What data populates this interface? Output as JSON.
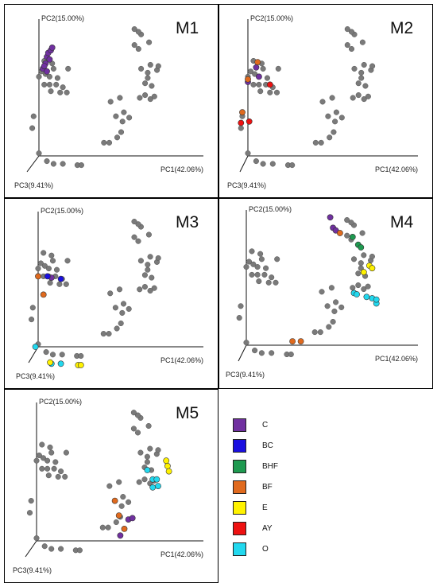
{
  "chart_data": {
    "type": "scatter",
    "axis_labels": {
      "pc1": "PC1(42.06%)",
      "pc2": "PC2(15.00%)",
      "pc3": "PC3(9.41%)"
    },
    "colors": {
      "gray": "#7a7a7a",
      "C": "#7030a0",
      "BC": "#1a0fe0",
      "BHF": "#1e9a50",
      "BF": "#e06a1e",
      "E": "#fff200",
      "AY": "#ee1111",
      "O": "#22d8ee"
    },
    "legend": [
      {
        "key": "C",
        "label": "C"
      },
      {
        "key": "BC",
        "label": "BC"
      },
      {
        "key": "BHF",
        "label": "BHF"
      },
      {
        "key": "BF",
        "label": "BF"
      },
      {
        "key": "E",
        "label": "E"
      },
      {
        "key": "AY",
        "label": "AY"
      },
      {
        "key": "O",
        "label": "O"
      }
    ],
    "panels": [
      {
        "id": "M1",
        "title": "M1",
        "highlighted": [
          {
            "group": "C",
            "pts": [
              [
                0.05,
                0.7
              ],
              [
                0.06,
                0.75
              ],
              [
                0.03,
                0.66
              ],
              [
                0.08,
                0.73
              ],
              [
                0.04,
                0.68
              ],
              [
                0.07,
                0.78
              ],
              [
                0.09,
                0.8
              ],
              [
                0.1,
                0.82
              ],
              [
                0.06,
                0.64
              ]
            ]
          }
        ]
      },
      {
        "id": "M2",
        "title": "M2",
        "highlighted": [
          {
            "group": "C",
            "pts": [
              [
                0.06,
                0.67
              ],
              [
                0.0,
                0.56
              ],
              [
                0.08,
                0.6
              ]
            ]
          },
          {
            "group": "BF",
            "pts": [
              [
                0.07,
                0.71
              ],
              [
                0.0,
                0.58
              ],
              [
                -0.04,
                0.33
              ]
            ]
          },
          {
            "group": "AY",
            "pts": [
              [
                0.16,
                0.54
              ],
              [
                -0.05,
                0.25
              ],
              [
                0.01,
                0.26
              ]
            ]
          }
        ]
      },
      {
        "id": "M3",
        "title": "M3",
        "highlighted": [
          {
            "group": "C",
            "pts": [
              [
                0.1,
                0.53
              ]
            ]
          },
          {
            "group": "BC",
            "pts": [
              [
                0.07,
                0.54
              ],
              [
                0.17,
                0.52
              ]
            ]
          },
          {
            "group": "BF",
            "pts": [
              [
                0.0,
                0.54
              ],
              [
                0.04,
                0.4
              ]
            ]
          },
          {
            "group": "O",
            "pts": [
              [
                -0.02,
                0.0
              ],
              [
                0.1,
                -0.13
              ],
              [
                0.17,
                -0.13
              ]
            ]
          },
          {
            "group": "E",
            "pts": [
              [
                0.09,
                -0.12
              ],
              [
                0.3,
                -0.14
              ],
              [
                0.32,
                -0.14
              ]
            ]
          }
        ]
      },
      {
        "id": "M4",
        "title": "M4",
        "highlighted": [
          {
            "group": "C",
            "pts": [
              [
                0.6,
                0.98
              ],
              [
                0.62,
                0.9
              ],
              [
                0.64,
                0.88
              ]
            ]
          },
          {
            "group": "BF",
            "pts": [
              [
                0.67,
                0.86
              ],
              [
                0.33,
                0.03
              ],
              [
                0.39,
                0.03
              ]
            ]
          },
          {
            "group": "BHF",
            "pts": [
              [
                0.76,
                0.83
              ],
              [
                0.8,
                0.77
              ],
              [
                0.82,
                0.75
              ]
            ]
          },
          {
            "group": "E",
            "pts": [
              [
                0.88,
                0.61
              ],
              [
                0.9,
                0.59
              ],
              [
                0.84,
                0.56
              ]
            ]
          },
          {
            "group": "O",
            "pts": [
              [
                0.77,
                0.4
              ],
              [
                0.79,
                0.39
              ],
              [
                0.86,
                0.37
              ],
              [
                0.9,
                0.36
              ],
              [
                0.93,
                0.32
              ],
              [
                0.93,
                0.35
              ]
            ]
          }
        ]
      },
      {
        "id": "M5",
        "title": "M5",
        "highlighted": [
          {
            "group": "E",
            "pts": [
              [
                0.96,
                0.6
              ],
              [
                0.97,
                0.56
              ],
              [
                0.98,
                0.52
              ]
            ]
          },
          {
            "group": "O",
            "pts": [
              [
                0.86,
                0.46
              ],
              [
                0.89,
                0.46
              ],
              [
                0.86,
                0.4
              ],
              [
                0.9,
                0.41
              ],
              [
                0.82,
                0.53
              ]
            ]
          },
          {
            "group": "BF",
            "pts": [
              [
                0.58,
                0.3
              ],
              [
                0.61,
                0.19
              ],
              [
                0.65,
                0.09
              ]
            ]
          },
          {
            "group": "C",
            "pts": [
              [
                0.68,
                0.16
              ],
              [
                0.71,
                0.17
              ],
              [
                0.62,
                0.04
              ]
            ]
          }
        ]
      }
    ],
    "background_pts": [
      [
        0.1,
        0.7
      ],
      [
        0.04,
        0.72
      ],
      [
        0.02,
        0.64
      ],
      [
        0.05,
        0.62
      ],
      [
        0.08,
        0.6
      ],
      [
        0.11,
        0.66
      ],
      [
        0.14,
        0.59
      ],
      [
        0.0,
        0.6
      ],
      [
        0.04,
        0.54
      ],
      [
        0.08,
        0.54
      ],
      [
        0.13,
        0.54
      ],
      [
        0.18,
        0.52
      ],
      [
        0.09,
        0.49
      ],
      [
        0.16,
        0.48
      ],
      [
        0.21,
        0.48
      ],
      [
        0.22,
        0.66
      ],
      [
        -0.04,
        0.3
      ],
      [
        -0.05,
        0.21
      ],
      [
        0.0,
        0.02
      ],
      [
        0.06,
        -0.04
      ],
      [
        0.11,
        -0.06
      ],
      [
        0.18,
        -0.06
      ],
      [
        0.29,
        -0.07
      ],
      [
        0.32,
        -0.07
      ],
      [
        0.49,
        0.1
      ],
      [
        0.53,
        0.1
      ],
      [
        0.59,
        0.14
      ],
      [
        0.62,
        0.18
      ],
      [
        0.63,
        0.26
      ],
      [
        0.68,
        0.29
      ],
      [
        0.64,
        0.33
      ],
      [
        0.58,
        0.3
      ],
      [
        0.54,
        0.41
      ],
      [
        0.61,
        0.44
      ],
      [
        0.76,
        0.44
      ],
      [
        0.8,
        0.46
      ],
      [
        0.84,
        0.43
      ],
      [
        0.87,
        0.45
      ],
      [
        0.8,
        0.55
      ],
      [
        0.82,
        0.59
      ],
      [
        0.82,
        0.63
      ],
      [
        0.77,
        0.66
      ],
      [
        0.84,
        0.69
      ],
      [
        0.89,
        0.65
      ],
      [
        0.9,
        0.68
      ],
      [
        0.85,
        0.53
      ],
      [
        0.72,
        0.84
      ],
      [
        0.75,
        0.81
      ],
      [
        0.77,
        0.92
      ],
      [
        0.75,
        0.94
      ],
      [
        0.72,
        0.96
      ],
      [
        0.83,
        0.86
      ]
    ]
  }
}
